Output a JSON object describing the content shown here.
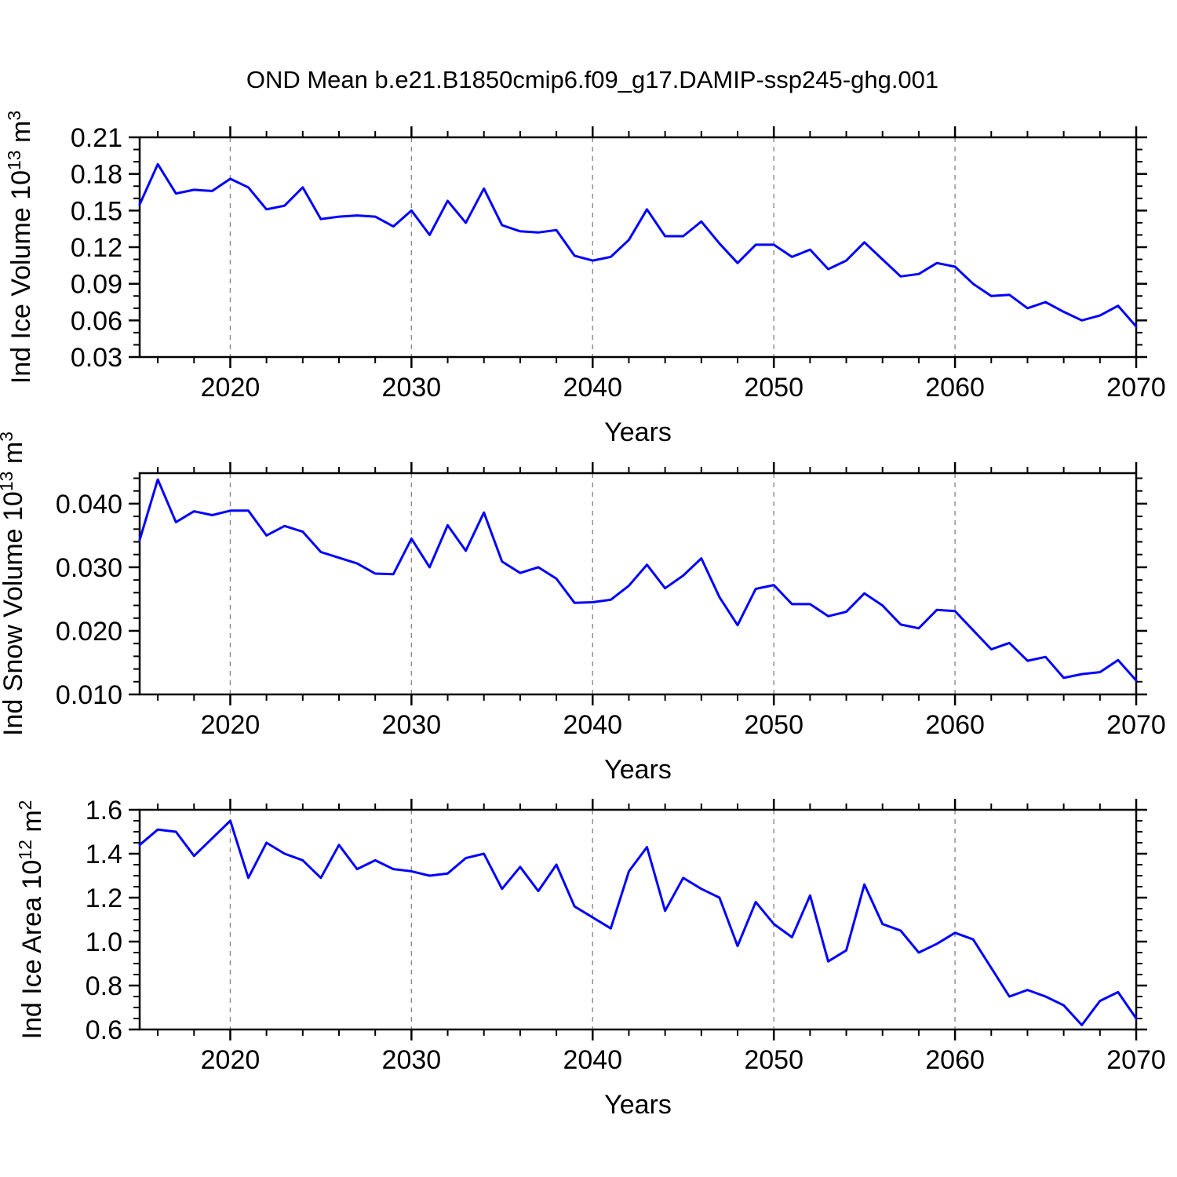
{
  "title": "OND Mean b.e21.B1850cmip6.f09_g17.DAMIP-ssp245-ghg.001",
  "colors": {
    "line": "#0000ff",
    "frame": "#000000",
    "grid": "#8a8a8a",
    "text": "#000000",
    "background": "#ffffff"
  },
  "chart_data": [
    {
      "type": "line",
      "name": "ind-ice-volume",
      "ylabel_text": "Ind Ice Volume 10^13 m^3",
      "ylabel_segments": [
        [
          "Ind Ice Volume 10",
          false
        ],
        [
          "13",
          true
        ],
        [
          " m",
          false
        ],
        [
          "3",
          true
        ]
      ],
      "xlabel": "Years",
      "xlim": [
        2015,
        2070
      ],
      "ylim": [
        0.03,
        0.21
      ],
      "xticks": {
        "values": [
          2020,
          2030,
          2040,
          2050,
          2060,
          2070
        ],
        "labels": [
          "2020",
          "2030",
          "2040",
          "2050",
          "2060",
          "2070"
        ]
      },
      "yticks": {
        "values": [
          0.03,
          0.06,
          0.09,
          0.12,
          0.15,
          0.18,
          0.21
        ],
        "labels": [
          "0.03",
          "0.06",
          "0.09",
          "0.12",
          "0.15",
          "0.18",
          "0.21"
        ]
      },
      "x_minor_step": 2,
      "y_minor_step": 0.01,
      "gridlines_x": [
        2020,
        2030,
        2040,
        2050,
        2060
      ],
      "grid_on": true,
      "legend": "none",
      "x": [
        2015,
        2016,
        2017,
        2018,
        2019,
        2020,
        2021,
        2022,
        2023,
        2024,
        2025,
        2026,
        2027,
        2028,
        2029,
        2030,
        2031,
        2032,
        2033,
        2034,
        2035,
        2036,
        2037,
        2038,
        2039,
        2040,
        2041,
        2042,
        2043,
        2044,
        2045,
        2046,
        2047,
        2048,
        2049,
        2050,
        2051,
        2052,
        2053,
        2054,
        2055,
        2056,
        2057,
        2058,
        2059,
        2060,
        2061,
        2062,
        2063,
        2064,
        2065,
        2066,
        2067,
        2068,
        2069,
        2070
      ],
      "values": [
        0.155,
        0.188,
        0.164,
        0.167,
        0.166,
        0.176,
        0.169,
        0.151,
        0.154,
        0.169,
        0.143,
        0.145,
        0.146,
        0.145,
        0.137,
        0.15,
        0.13,
        0.158,
        0.14,
        0.168,
        0.138,
        0.133,
        0.132,
        0.134,
        0.113,
        0.109,
        0.112,
        0.126,
        0.151,
        0.129,
        0.129,
        0.141,
        0.123,
        0.107,
        0.122,
        0.122,
        0.112,
        0.118,
        0.102,
        0.109,
        0.124,
        0.11,
        0.096,
        0.098,
        0.107,
        0.104,
        0.09,
        0.08,
        0.081,
        0.07,
        0.075,
        0.067,
        0.06,
        0.064,
        0.072,
        0.055
      ]
    },
    {
      "type": "line",
      "name": "ind-snow-volume",
      "ylabel_text": "Ind Snow Volume 10^13 m^3",
      "ylabel_segments": [
        [
          "Ind Snow Volume 10",
          false
        ],
        [
          "13",
          true
        ],
        [
          " m",
          false
        ],
        [
          "3",
          true
        ]
      ],
      "xlabel": "Years",
      "xlim": [
        2015,
        2070
      ],
      "ylim": [
        0.01,
        0.0448
      ],
      "xticks": {
        "values": [
          2020,
          2030,
          2040,
          2050,
          2060,
          2070
        ],
        "labels": [
          "2020",
          "2030",
          "2040",
          "2050",
          "2060",
          "2070"
        ]
      },
      "yticks": {
        "values": [
          0.01,
          0.02,
          0.03,
          0.04
        ],
        "labels": [
          "0.010",
          "0.020",
          "0.030",
          "0.040"
        ]
      },
      "x_minor_step": 2,
      "y_minor_step": 0.002,
      "gridlines_x": [
        2020,
        2030,
        2040,
        2050,
        2060
      ],
      "grid_on": true,
      "legend": "none",
      "x": [
        2015,
        2016,
        2017,
        2018,
        2019,
        2020,
        2021,
        2022,
        2023,
        2024,
        2025,
        2026,
        2027,
        2028,
        2029,
        2030,
        2031,
        2032,
        2033,
        2034,
        2035,
        2036,
        2037,
        2038,
        2039,
        2040,
        2041,
        2042,
        2043,
        2044,
        2045,
        2046,
        2047,
        2048,
        2049,
        2050,
        2051,
        2052,
        2053,
        2054,
        2055,
        2056,
        2057,
        2058,
        2059,
        2060,
        2061,
        2062,
        2063,
        2064,
        2065,
        2066,
        2067,
        2068,
        2069,
        2070
      ],
      "values": [
        0.0343,
        0.0438,
        0.0371,
        0.0388,
        0.0382,
        0.0389,
        0.0389,
        0.035,
        0.0365,
        0.0356,
        0.0324,
        0.0315,
        0.0306,
        0.029,
        0.0289,
        0.0345,
        0.03,
        0.0366,
        0.0326,
        0.0386,
        0.0309,
        0.0291,
        0.03,
        0.0282,
        0.0244,
        0.0245,
        0.0249,
        0.0271,
        0.0304,
        0.0267,
        0.0287,
        0.0314,
        0.0253,
        0.0209,
        0.0266,
        0.0272,
        0.0242,
        0.0242,
        0.0223,
        0.023,
        0.0259,
        0.024,
        0.021,
        0.0204,
        0.0233,
        0.0231,
        0.0201,
        0.0171,
        0.0181,
        0.0153,
        0.0159,
        0.0126,
        0.0132,
        0.0135,
        0.0154,
        0.0122
      ]
    },
    {
      "type": "line",
      "name": "ind-ice-area",
      "ylabel_text": "Ind Ice Area 10^12 m^2",
      "ylabel_segments": [
        [
          "Ind Ice Area 10",
          false
        ],
        [
          "12",
          true
        ],
        [
          " m",
          false
        ],
        [
          "2",
          true
        ]
      ],
      "xlabel": "Years",
      "xlim": [
        2015,
        2070
      ],
      "ylim": [
        0.6,
        1.6
      ],
      "xticks": {
        "values": [
          2020,
          2030,
          2040,
          2050,
          2060,
          2070
        ],
        "labels": [
          "2020",
          "2030",
          "2040",
          "2050",
          "2060",
          "2070"
        ]
      },
      "yticks": {
        "values": [
          0.6,
          0.8,
          1.0,
          1.2,
          1.4,
          1.6
        ],
        "labels": [
          "0.6",
          "0.8",
          "1.0",
          "1.2",
          "1.4",
          "1.6"
        ]
      },
      "x_minor_step": 2,
      "y_minor_step": 0.05,
      "gridlines_x": [
        2020,
        2030,
        2040,
        2050,
        2060
      ],
      "grid_on": true,
      "legend": "none",
      "x": [
        2015,
        2016,
        2017,
        2018,
        2019,
        2020,
        2021,
        2022,
        2023,
        2024,
        2025,
        2026,
        2027,
        2028,
        2029,
        2030,
        2031,
        2032,
        2033,
        2034,
        2035,
        2036,
        2037,
        2038,
        2039,
        2040,
        2041,
        2042,
        2043,
        2044,
        2045,
        2046,
        2047,
        2048,
        2049,
        2050,
        2051,
        2052,
        2053,
        2054,
        2055,
        2056,
        2057,
        2058,
        2059,
        2060,
        2061,
        2062,
        2063,
        2064,
        2065,
        2066,
        2067,
        2068,
        2069,
        2070
      ],
      "values": [
        1.44,
        1.51,
        1.5,
        1.39,
        1.47,
        1.55,
        1.29,
        1.45,
        1.4,
        1.37,
        1.29,
        1.44,
        1.33,
        1.37,
        1.33,
        1.32,
        1.3,
        1.31,
        1.38,
        1.4,
        1.24,
        1.34,
        1.23,
        1.35,
        1.16,
        1.11,
        1.06,
        1.32,
        1.43,
        1.14,
        1.29,
        1.24,
        1.2,
        0.98,
        1.18,
        1.08,
        1.02,
        1.21,
        0.91,
        0.96,
        1.26,
        1.08,
        1.05,
        0.95,
        0.99,
        1.04,
        1.01,
        0.88,
        0.75,
        0.78,
        0.75,
        0.71,
        0.62,
        0.73,
        0.77,
        0.65
      ]
    }
  ]
}
